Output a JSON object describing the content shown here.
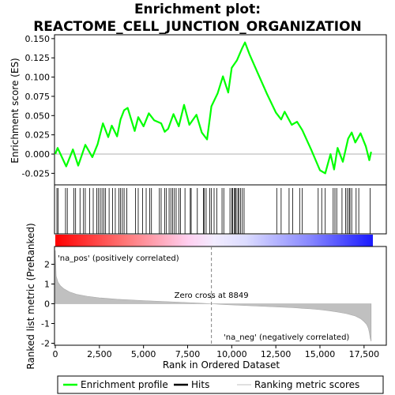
{
  "chart_data": {
    "type": "line",
    "title": "Enrichment plot:\nREACTOME_CELL_JUNCTION_ORGANIZATION",
    "title_lines": [
      "Enrichment plot:",
      "REACTOME_CELL_JUNCTION_ORGANIZATION"
    ],
    "xlabel": "Rank in Ordered Dataset",
    "ylabel_top": "Enrichment score (ES)",
    "ylabel_bottom": "Ranked list metric (PreRanked)",
    "xlim": [
      0,
      18000
    ],
    "x_ticks": [
      0,
      2500,
      5000,
      7500,
      10000,
      12500,
      15000,
      17500
    ],
    "x_tick_labels": [
      "0",
      "2,500",
      "5,000",
      "7,500",
      "10,000",
      "12,500",
      "15,000",
      "17,500"
    ],
    "es_ylim": [
      -0.04,
      0.155
    ],
    "es_ticks": [
      -0.025,
      0,
      0.025,
      0.05,
      0.075,
      0.1,
      0.125,
      0.15
    ],
    "es_tick_labels": [
      "-0.025",
      "0.000",
      "0.025",
      "0.050",
      "0.075",
      "0.100",
      "0.125",
      "0.150"
    ],
    "metric_ylim": [
      -2.1,
      2.9
    ],
    "metric_ticks": [
      -2,
      -1,
      0,
      1,
      2
    ],
    "metric_tick_labels": [
      "-2",
      "-1",
      "0",
      "1",
      "2"
    ],
    "zero_cross": 8849,
    "zero_cross_label": "Zero cross at 8849",
    "pos_label": "'na_pos' (positively correlated)",
    "neg_label": "'na_neg' (negatively correlated)",
    "enrichment_profile": {
      "name": "Enrichment profile",
      "color": "#00ff00",
      "x": [
        0,
        130,
        620,
        1000,
        1300,
        1700,
        2100,
        2400,
        2700,
        3000,
        3200,
        3500,
        3700,
        3900,
        4100,
        4500,
        4700,
        5000,
        5300,
        5600,
        6000,
        6200,
        6400,
        6700,
        7000,
        7300,
        7600,
        8000,
        8300,
        8600,
        8850,
        9200,
        9500,
        9800,
        10000,
        10300,
        10600,
        10750,
        11000,
        11500,
        12000,
        12500,
        12800,
        13000,
        13400,
        13700,
        14000,
        14500,
        15000,
        15300,
        15600,
        15800,
        16000,
        16300,
        16600,
        16800,
        17000,
        17300,
        17600,
        17800,
        17900
      ],
      "y": [
        0.0,
        0.008,
        -0.016,
        0.006,
        -0.015,
        0.012,
        -0.004,
        0.013,
        0.04,
        0.022,
        0.037,
        0.023,
        0.045,
        0.057,
        0.06,
        0.03,
        0.048,
        0.036,
        0.053,
        0.044,
        0.04,
        0.029,
        0.033,
        0.052,
        0.036,
        0.064,
        0.038,
        0.051,
        0.028,
        0.019,
        0.062,
        0.079,
        0.101,
        0.08,
        0.112,
        0.122,
        0.138,
        0.145,
        0.13,
        0.104,
        0.078,
        0.054,
        0.045,
        0.055,
        0.038,
        0.042,
        0.031,
        0.006,
        -0.021,
        -0.025,
        0.0,
        -0.02,
        0.008,
        -0.01,
        0.02,
        0.028,
        0.015,
        0.027,
        0.01,
        -0.008,
        0.003
      ]
    },
    "hits": {
      "name": "Hits",
      "color": "#000000",
      "positions": [
        90,
        160,
        580,
        680,
        1050,
        1150,
        1400,
        1600,
        1700,
        1950,
        2150,
        2350,
        2450,
        2550,
        2650,
        2750,
        2850,
        3050,
        3250,
        3400,
        3600,
        3700,
        3800,
        3900,
        4050,
        4550,
        4700,
        4950,
        5150,
        5350,
        5450,
        5900,
        6000,
        6200,
        6300,
        6450,
        6550,
        6650,
        6750,
        6850,
        7000,
        7100,
        7350,
        7650,
        7700,
        8050,
        8400,
        8450,
        8550,
        8750,
        8850,
        9000,
        9150,
        9450,
        9550,
        9900,
        10000,
        10050,
        10150,
        10200,
        10250,
        10350,
        10400,
        10500,
        10600,
        10700,
        12550,
        12800,
        13250,
        13450,
        13850,
        14000,
        14900,
        15100,
        15300,
        15750,
        15850,
        15950,
        16250,
        16450,
        16550,
        16650,
        16700,
        16800,
        17050,
        17200,
        17850
      ]
    },
    "ranking_metric": {
      "name": "Ranking metric scores",
      "color": "#c0c0c0",
      "x": [
        0,
        50,
        150,
        300,
        500,
        800,
        1200,
        1800,
        2500,
        3500,
        5000,
        6500,
        7500,
        8200,
        8849,
        9500,
        10500,
        11500,
        12500,
        13500,
        14500,
        15000,
        15500,
        16000,
        16500,
        17000,
        17300,
        17500,
        17650,
        17750,
        17800,
        17850,
        17900
      ],
      "y": [
        2.7,
        1.4,
        1.1,
        0.9,
        0.75,
        0.6,
        0.48,
        0.38,
        0.3,
        0.23,
        0.16,
        0.1,
        0.06,
        0.03,
        0.0,
        -0.04,
        -0.08,
        -0.12,
        -0.16,
        -0.2,
        -0.26,
        -0.3,
        -0.35,
        -0.42,
        -0.5,
        -0.62,
        -0.75,
        -0.9,
        -1.05,
        -1.25,
        -1.45,
        -1.75,
        -1.9
      ]
    },
    "legend": {
      "placement": "bottom",
      "entries": [
        {
          "label": "Enrichment profile",
          "color": "#00ff00"
        },
        {
          "label": "Hits",
          "color": "#000000"
        },
        {
          "label": "Ranking metric scores",
          "color": "#c0c0c0"
        }
      ]
    },
    "colors": {
      "strip_pos": "#ff0000",
      "strip_neg": "#0000ff",
      "zero_line": "#808080",
      "pos_text": "#ff0000",
      "neg_text": "#0000cc"
    }
  }
}
